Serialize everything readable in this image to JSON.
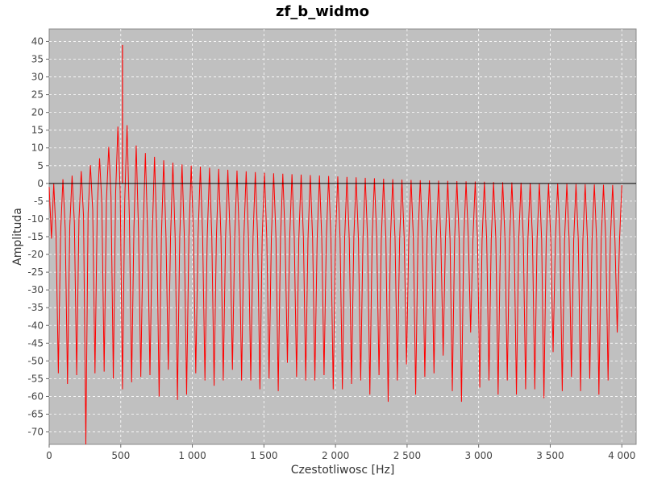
{
  "chart_data": {
    "type": "line",
    "title": "zf_b_widmo",
    "xlabel": "Czestotliwosc [Hz]",
    "ylabel": "Amplituda",
    "xlim": [
      0,
      4100
    ],
    "ylim": [
      -73.5,
      43.5
    ],
    "x_ticks": [
      0,
      500,
      1000,
      1500,
      2000,
      2500,
      3000,
      3500,
      4000
    ],
    "x_tick_labels": [
      "0",
      "500",
      "1 000",
      "1 500",
      "2 000",
      "2 500",
      "3 000",
      "3 500",
      "4 000"
    ],
    "y_ticks": [
      40,
      35,
      30,
      25,
      20,
      15,
      10,
      5,
      0,
      -5,
      -10,
      -15,
      -20,
      -25,
      -30,
      -35,
      -40,
      -45,
      -50,
      -55,
      -60,
      -65,
      -70
    ],
    "grid": true,
    "background": "#c0c0c0",
    "series_color": "#ff0000",
    "zero_line_color": "#000000",
    "series": [
      {
        "x_start": 0,
        "x_end": 4000,
        "x_step": 16,
        "upper_envelope": [
          [
            0,
            -1
          ],
          [
            50,
            0.5
          ],
          [
            150,
            2
          ],
          [
            250,
            4
          ],
          [
            350,
            7
          ],
          [
            400,
            9
          ],
          [
            450,
            13
          ],
          [
            480,
            16
          ],
          [
            500,
            25
          ],
          [
            512,
            39
          ],
          [
            520,
            26
          ],
          [
            540,
            17
          ],
          [
            560,
            14
          ],
          [
            600,
            11
          ],
          [
            650,
            9
          ],
          [
            700,
            8
          ],
          [
            800,
            6.5
          ],
          [
            900,
            5.5
          ],
          [
            1000,
            5
          ],
          [
            1200,
            4
          ],
          [
            1500,
            3
          ],
          [
            2000,
            2
          ],
          [
            2500,
            1
          ],
          [
            3000,
            0.5
          ],
          [
            3500,
            0
          ],
          [
            4000,
            -0.5
          ]
        ],
        "lower_envelope": [
          [
            0,
            -16
          ],
          [
            500,
            -2
          ],
          [
            512,
            -1
          ],
          [
            520,
            -3
          ],
          [
            540,
            -7
          ],
          [
            580,
            -12
          ],
          [
            640,
            -14
          ],
          [
            800,
            -15
          ],
          [
            1000,
            -15
          ],
          [
            2000,
            -15.5
          ],
          [
            4000,
            -16
          ]
        ],
        "dip_points": [
          [
            64,
            -53.5
          ],
          [
            128,
            -56.5
          ],
          [
            192,
            -54
          ],
          [
            256,
            -73.5
          ],
          [
            320,
            -53.5
          ],
          [
            384,
            -53
          ],
          [
            448,
            -55
          ],
          [
            512,
            -58
          ],
          [
            576,
            -56
          ],
          [
            640,
            -54.5
          ],
          [
            704,
            -54
          ],
          [
            768,
            -60
          ],
          [
            832,
            -52.5
          ],
          [
            896,
            -61
          ],
          [
            960,
            -59.5
          ],
          [
            1024,
            -53.5
          ],
          [
            1088,
            -55.5
          ],
          [
            1152,
            -57
          ],
          [
            1216,
            -55.5
          ],
          [
            1280,
            -52.5
          ],
          [
            1344,
            -55.5
          ],
          [
            1408,
            -55.5
          ],
          [
            1472,
            -58
          ],
          [
            1536,
            -55
          ],
          [
            1600,
            -58.5
          ],
          [
            1664,
            -50.5
          ],
          [
            1728,
            -54.5
          ],
          [
            1792,
            -55.5
          ],
          [
            1856,
            -55.5
          ],
          [
            1920,
            -54
          ],
          [
            1984,
            -58
          ],
          [
            2048,
            -58
          ],
          [
            2112,
            -56.5
          ],
          [
            2176,
            -55.5
          ],
          [
            2240,
            -59.5
          ],
          [
            2304,
            -54
          ],
          [
            2368,
            -61.5
          ],
          [
            2432,
            -55.5
          ],
          [
            2496,
            -51
          ],
          [
            2560,
            -59.5
          ],
          [
            2624,
            -54.5
          ],
          [
            2688,
            -53.5
          ],
          [
            2752,
            -48.5
          ],
          [
            2816,
            -58.5
          ],
          [
            2880,
            -61.5
          ],
          [
            2944,
            -42
          ],
          [
            3008,
            -57.5
          ],
          [
            3072,
            -55.5
          ],
          [
            3136,
            -59.5
          ],
          [
            3200,
            -55.5
          ],
          [
            3264,
            -59.5
          ],
          [
            3328,
            -58
          ],
          [
            3392,
            -58
          ],
          [
            3456,
            -60.5
          ],
          [
            3520,
            -47.5
          ],
          [
            3584,
            -58.5
          ],
          [
            3648,
            -54.5
          ],
          [
            3712,
            -58.5
          ],
          [
            3776,
            -55
          ],
          [
            3840,
            -59.5
          ],
          [
            3904,
            -55.5
          ],
          [
            3968,
            -42
          ]
        ]
      }
    ]
  }
}
